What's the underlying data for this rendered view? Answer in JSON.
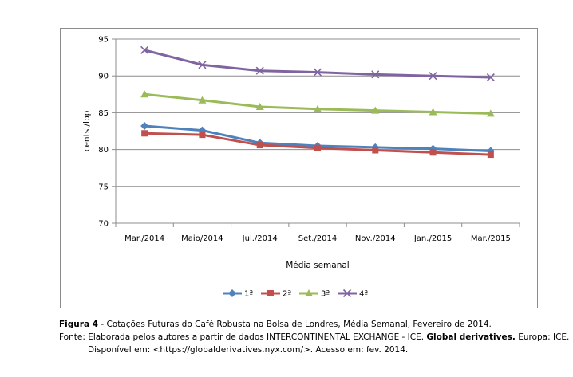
{
  "chart_data": {
    "type": "line",
    "categories": [
      "Mar./2014",
      "Maio/2014",
      "Jul./2014",
      "Set./2014",
      "Nov./2014",
      "Jan./2015",
      "Mar./2015"
    ],
    "series": [
      {
        "name": "1ª",
        "color": "#4f81bd",
        "marker": "diamond",
        "values": [
          83.2,
          82.6,
          80.9,
          80.5,
          80.3,
          80.1,
          79.8
        ]
      },
      {
        "name": "2ª",
        "color": "#c0504d",
        "marker": "square",
        "values": [
          82.2,
          82.0,
          80.6,
          80.2,
          79.9,
          79.6,
          79.3
        ]
      },
      {
        "name": "3ª",
        "color": "#9bbb59",
        "marker": "triangle",
        "values": [
          87.5,
          86.7,
          85.8,
          85.5,
          85.3,
          85.1,
          84.9
        ]
      },
      {
        "name": "4ª",
        "color": "#8064a2",
        "marker": "x",
        "values": [
          93.5,
          91.5,
          90.7,
          90.5,
          90.2,
          90.0,
          89.8
        ]
      }
    ],
    "ylim": [
      70,
      95
    ],
    "yticks": [
      70,
      75,
      80,
      85,
      90,
      95
    ],
    "xlabel": "Média semanal",
    "ylabel": "cents./lbp",
    "grid": "horizontal",
    "legend": "bottom"
  },
  "caption": {
    "figure_label": "Figura 4",
    "figure_text": " - Cotações Futuras do Café Robusta na Bolsa de Londres, Média Semanal, Fevereiro de 2014.",
    "source_prefix": "Fonte: Elaborada pelos autores a partir de dados INTERCONTINENTAL EXCHANGE - ICE. ",
    "source_bold": "Global derivatives.",
    "source_suffix": " Europa: ICE.",
    "availability": "Disponível em: <https://globalderivatives.nyx.com/>. Acesso em: fev. 2014."
  }
}
